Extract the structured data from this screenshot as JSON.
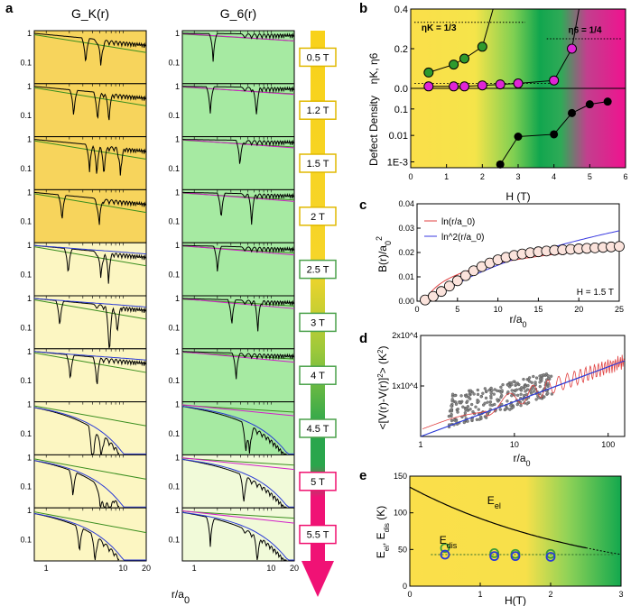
{
  "labels": {
    "a": "a",
    "b": "b",
    "c": "c",
    "d": "d",
    "e": "e"
  },
  "colors": {
    "gk_dark": "#f7d45c",
    "gk_light": "#fcf6c2",
    "g6_dark": "#a6eaa2",
    "g6_light": "#f1fad9",
    "green": "#3a8e1f",
    "blue": "#2a3ad6",
    "magenta": "#d21fc8",
    "pink": "#f0106f"
  },
  "chart_data": [
    {
      "id": "a",
      "type": "line",
      "title_left": "G_K(r)",
      "title_right": "G_6(r)",
      "xlabel": "r/a_0",
      "xlim": [
        0.7,
        20
      ],
      "ylim": [
        0.02,
        1
      ],
      "x_ticks_left": [
        "1",
        "10",
        "20"
      ],
      "x_ticks_right": [
        "1",
        "10",
        "20"
      ],
      "y_ticks": [
        "1",
        "0.1"
      ],
      "fields": [
        "0.5 T",
        "1.2 T",
        "1.5 T",
        "2 T",
        "2.5 T",
        "3 T",
        "4 T",
        "4.5 T",
        "5 T",
        "5.5 T"
      ],
      "background_state_left": [
        "dark",
        "dark",
        "dark",
        "dark",
        "light",
        "light",
        "light",
        "light",
        "light",
        "light"
      ],
      "background_state_right": [
        "dark",
        "dark",
        "dark",
        "dark",
        "dark",
        "dark",
        "dark",
        "dark",
        "light",
        "light"
      ]
    },
    {
      "id": "b",
      "type": "scatter",
      "xlabel": "H (T)",
      "xlim": [
        0,
        6
      ],
      "x_ticks": [
        "0",
        "1",
        "2",
        "3",
        "4",
        "5",
        "6"
      ],
      "top": {
        "ylabel": "ηK, η6",
        "ylim": [
          0,
          0.4
        ],
        "y_ticks": [
          "0.0",
          "0.2",
          "0.4"
        ],
        "annotation_left": "ηK = 1/3",
        "annotation_right": "η6 = 1/4",
        "eta_K": {
          "H": [
            0.5,
            1.2,
            1.5,
            2.0
          ],
          "values": [
            0.08,
            0.12,
            0.15,
            0.21
          ]
        },
        "eta_6": {
          "H": [
            0.5,
            1.2,
            1.5,
            2.0,
            2.5,
            3.0,
            4.0,
            4.5
          ],
          "values": [
            0.01,
            0.01,
            0.01,
            0.015,
            0.02,
            0.025,
            0.04,
            0.2
          ]
        }
      },
      "bottom": {
        "ylabel": "Defect Density",
        "ylim": [
          0.0006,
          0.6
        ],
        "y_ticks": [
          "0.1",
          "0.01",
          "1E-3"
        ],
        "defects": {
          "H": [
            2.5,
            3.0,
            4.0,
            4.5,
            5.0,
            5.5
          ],
          "values": [
            0.0008,
            0.009,
            0.011,
            0.07,
            0.15,
            0.19
          ]
        }
      }
    },
    {
      "id": "c",
      "type": "scatter",
      "xlabel": "r/a_0",
      "ylabel": "B(r)/a_0^2",
      "xlim": [
        0,
        25
      ],
      "ylim": [
        0,
        0.04
      ],
      "x_ticks": [
        "0",
        "5",
        "10",
        "15",
        "20",
        "25"
      ],
      "y_ticks": [
        "0.00",
        "0.01",
        "0.02",
        "0.03",
        "0.04"
      ],
      "legend": [
        "ln(r/a_0)",
        "ln^2(r/a_0)"
      ],
      "annotation": "H = 1.5 T",
      "points": {
        "x": [
          1,
          2,
          3,
          4,
          5,
          6,
          7,
          8,
          9,
          10,
          11,
          12,
          13,
          14,
          15,
          16,
          17,
          18,
          19,
          20,
          21,
          22,
          23,
          24,
          25
        ],
        "y": [
          0.0005,
          0.002,
          0.004,
          0.0062,
          0.0084,
          0.0105,
          0.0125,
          0.0142,
          0.0157,
          0.017,
          0.018,
          0.0188,
          0.0194,
          0.0199,
          0.0203,
          0.0206,
          0.0209,
          0.0211,
          0.0213,
          0.0215,
          0.0217,
          0.0219,
          0.0221,
          0.0223,
          0.0225
        ]
      }
    },
    {
      "id": "d",
      "type": "scatter",
      "xlabel": "r/a_0",
      "ylabel": "<[V(r)-V(r)]^2> (K^2)",
      "xlim": [
        1,
        150
      ],
      "ylim": [
        0,
        20000
      ],
      "x_ticks": [
        "1",
        "10",
        "100"
      ],
      "y_ticks": [
        "1x10^4",
        "2x10^4"
      ],
      "linear_fit_endpoints": {
        "x": [
          1,
          150
        ],
        "y": [
          0,
          15000
        ]
      }
    },
    {
      "id": "e",
      "type": "line",
      "xlabel": "H(T)",
      "ylabel": "E_el, E_dis (K)",
      "xlim": [
        0,
        3
      ],
      "ylim": [
        0,
        150
      ],
      "x_ticks": [
        "0",
        "1",
        "2",
        "3"
      ],
      "y_ticks": [
        "0",
        "50",
        "100",
        "150"
      ],
      "E_el_label": "E_el",
      "E_dis_label": "E_dis",
      "E_el": {
        "H": [
          0,
          0.5,
          1.0,
          1.5,
          2.0,
          2.5,
          3.0
        ],
        "values": [
          135,
          118,
          103,
          90,
          79,
          64,
          50
        ]
      },
      "E_dis_green": {
        "H": [
          0.5,
          1.2,
          1.5,
          2.0
        ],
        "values": [
          52,
          45,
          44,
          44
        ]
      },
      "E_dis_blue": {
        "H": [
          0.5,
          1.2,
          1.5,
          2.0
        ],
        "values": [
          43,
          41,
          41,
          40
        ]
      },
      "E_dis_level": 43
    }
  ]
}
